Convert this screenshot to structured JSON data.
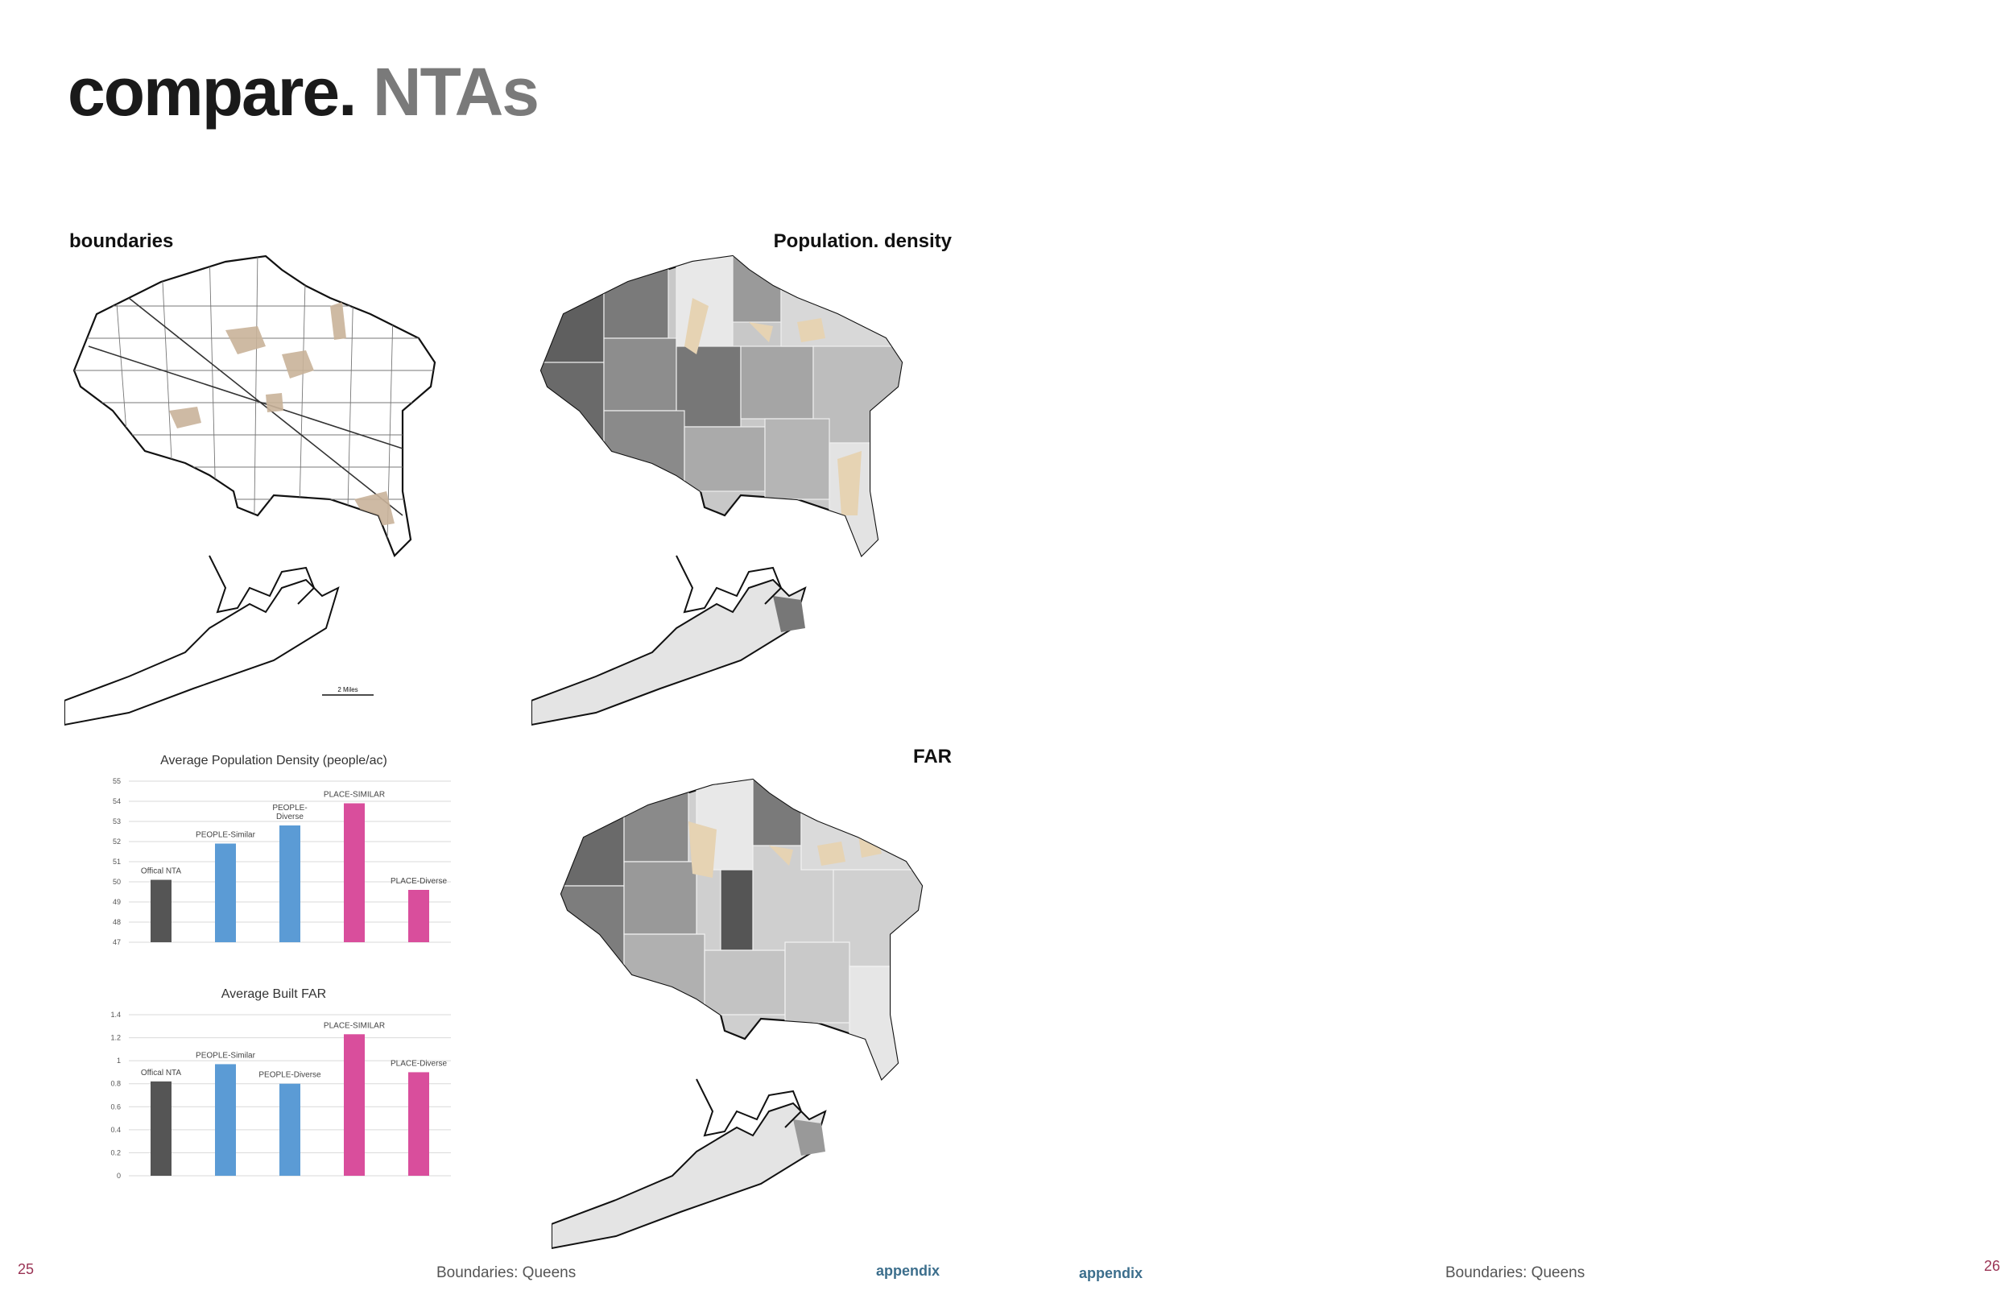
{
  "title": {
    "main": "compare.",
    "sub": "NTAs"
  },
  "labels": {
    "boundaries": "boundaries",
    "population_density": "Population. density",
    "far": "FAR",
    "scale_bar": "2 Miles"
  },
  "footer": {
    "left_page": "25",
    "left_caption": "Boundaries: Queens",
    "left_link": "appendix",
    "right_link": "appendix",
    "right_caption": "Boundaries: Queens",
    "right_page": "26"
  },
  "colors": {
    "official": "#555555",
    "people": "#5b9bd5",
    "place": "#d94e9c",
    "park": "#d9c4a3",
    "accent_red": "#9a3354",
    "link": "#3c6e8c"
  },
  "chart_data": [
    {
      "type": "bar",
      "title": "Average Population Density (people/ac)",
      "categories": [
        "Offical NTA",
        "PEOPLE-Similar",
        "PEOPLE-Diverse",
        "PLACE-SIMILAR",
        "PLACE-Diverse"
      ],
      "bar_labels": [
        "Offical NTA",
        "PEOPLE-Similar",
        [
          "PEOPLE-",
          "Diverse"
        ],
        "PLACE-SIMILAR",
        "PLACE-Diverse"
      ],
      "values": [
        50.1,
        51.9,
        52.8,
        53.9,
        49.6
      ],
      "ylim": [
        47,
        55
      ],
      "yticks": [
        "47",
        "48",
        "49",
        "50",
        "51",
        "52",
        "53",
        "54",
        "55"
      ],
      "grid": true,
      "xlabel": "",
      "ylabel": ""
    },
    {
      "type": "bar",
      "title": "Average Built FAR",
      "categories": [
        "Offical NTA",
        "PEOPLE-Similar",
        "PEOPLE-Diverse",
        "PLACE-SIMILAR",
        "PLACE-Diverse"
      ],
      "bar_labels": [
        "Offical NTA",
        "PEOPLE-Similar",
        "PEOPLE-Diverse",
        "PLACE-SIMILAR",
        "PLACE-Diverse"
      ],
      "values": [
        0.82,
        0.97,
        0.8,
        1.23,
        0.9
      ],
      "ylim": [
        0,
        1.4
      ],
      "yticks": [
        "0",
        "0.2",
        "0.4",
        "0.6",
        "0.8",
        "1",
        "1.2",
        "1.4"
      ],
      "grid": true,
      "xlabel": "",
      "ylabel": ""
    }
  ]
}
